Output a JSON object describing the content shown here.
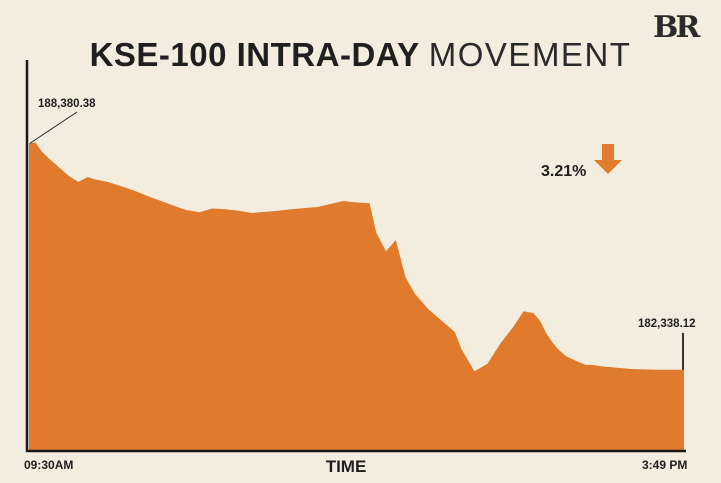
{
  "header": {
    "logo": "BR",
    "title_bold": "KSE-100 INTRA-DAY",
    "title_light": "MOVEMENT"
  },
  "chart_data": {
    "type": "area",
    "title": "KSE-100 INTRA-DAY MOVEMENT",
    "xlabel": "TIME",
    "ylabel": "",
    "x_start_label": "09:30AM",
    "x_end_label": "3:49 PM",
    "open_label": "188,380.38",
    "close_label": "182,338.12",
    "change_label": "3.21%",
    "change_direction": "down",
    "open_value": 188380.38,
    "close_value": 182338.12,
    "ylim": [
      180200,
      190600
    ],
    "grid": false,
    "legend": "none",
    "fill_color": "#e07b2e",
    "arrow_color": "#e07b2e",
    "series": [
      {
        "x": [
          0,
          0.01,
          0.02,
          0.03,
          0.045,
          0.06,
          0.075,
          0.09,
          0.1,
          0.12,
          0.14,
          0.16,
          0.18,
          0.2,
          0.22,
          0.24,
          0.26,
          0.28,
          0.3,
          0.32,
          0.34,
          0.36,
          0.38,
          0.4,
          0.42,
          0.44,
          0.46,
          0.48,
          0.5,
          0.52,
          0.53,
          0.545,
          0.56,
          0.575,
          0.59,
          0.6,
          0.61,
          0.62,
          0.63,
          0.64,
          0.65,
          0.66,
          0.68,
          0.7,
          0.72,
          0.74,
          0.755,
          0.77,
          0.78,
          0.79,
          0.8,
          0.81,
          0.82,
          0.83,
          0.84,
          0.85,
          0.86,
          0.88,
          0.9,
          0.92,
          0.94,
          0.96,
          0.98,
          1.0
        ],
        "y": [
          188380,
          188400,
          188150,
          187980,
          187750,
          187520,
          187350,
          187480,
          187420,
          187350,
          187240,
          187120,
          186980,
          186850,
          186720,
          186600,
          186540,
          186640,
          186620,
          186580,
          186520,
          186550,
          186580,
          186620,
          186650,
          186680,
          186760,
          186840,
          186800,
          186780,
          186000,
          185500,
          185800,
          184800,
          184350,
          184150,
          183950,
          183800,
          183650,
          183500,
          183350,
          182900,
          182300,
          182500,
          183050,
          183500,
          183900,
          183850,
          183650,
          183300,
          183050,
          182850,
          182700,
          182620,
          182540,
          182470,
          182470,
          182420,
          182390,
          182360,
          182350,
          182340,
          182340,
          182338
        ]
      }
    ]
  }
}
